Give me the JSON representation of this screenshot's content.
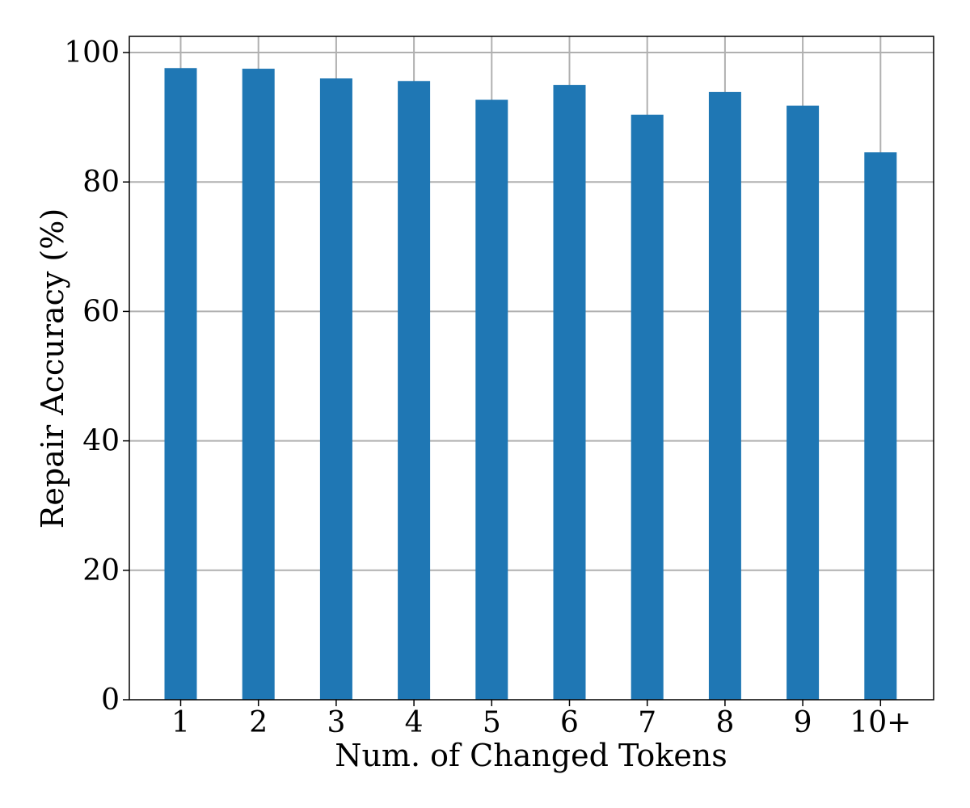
{
  "chart_data": {
    "type": "bar",
    "categories": [
      "1",
      "2",
      "3",
      "4",
      "5",
      "6",
      "7",
      "8",
      "9",
      "10+"
    ],
    "values": [
      97.6,
      97.5,
      96.0,
      95.6,
      92.7,
      95.0,
      90.4,
      93.9,
      91.8,
      84.6
    ],
    "xlabel": "Num. of Changed Tokens",
    "ylabel": "Repair Accuracy (%)",
    "ylim": [
      0,
      102.5
    ],
    "yticks": [
      0,
      20,
      40,
      60,
      80,
      100
    ],
    "grid": true,
    "bar_color": "#1f77b4",
    "grid_color": "#b0b0b0"
  }
}
